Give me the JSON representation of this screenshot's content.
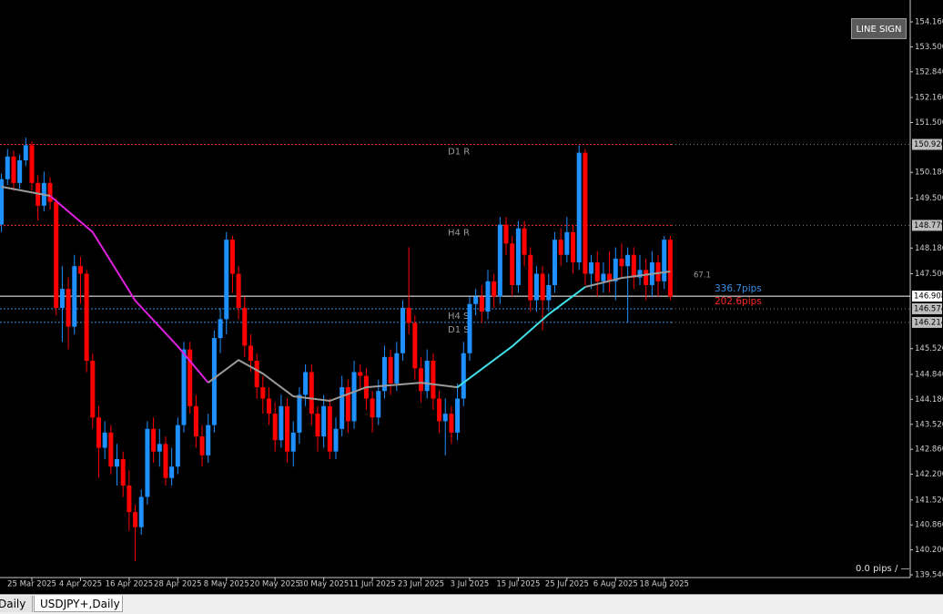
{
  "chart_data": {
    "type": "candlestick",
    "up_color": "#1e90ff",
    "down_color": "#ff0000",
    "open": [
      148.8,
      150.0,
      150.6,
      149.9,
      150.5,
      150.9,
      149.9,
      149.3,
      149.9,
      149.4,
      146.6,
      147.1,
      146.1,
      147.7,
      147.5,
      145.2,
      143.7,
      142.9,
      143.3,
      142.4,
      142.6,
      141.9,
      141.2,
      140.8,
      141.6,
      143.4,
      142.8,
      143.0,
      142.1,
      142.4,
      143.5,
      145.5,
      144.0,
      143.2,
      142.7,
      143.5,
      145.8,
      146.3,
      148.4,
      147.5,
      146.6,
      145.6,
      145.2,
      144.5,
      144.2,
      143.8,
      143.1,
      144.0,
      142.8,
      143.3,
      144.3,
      144.9,
      143.8,
      143.2,
      144.0,
      142.8,
      143.4,
      144.5,
      143.6,
      144.9,
      144.8,
      144.2,
      143.7,
      144.4,
      145.3,
      144.6,
      145.4,
      146.6,
      146.2,
      145.0,
      144.4,
      145.2,
      144.2,
      143.6,
      143.8,
      143.3,
      144.2,
      145.4,
      146.7,
      146.9,
      146.5,
      147.3,
      146.9,
      148.8,
      148.3,
      147.2,
      148.7,
      148.0,
      146.8,
      147.5,
      146.8,
      147.2,
      148.4,
      148.0,
      148.6,
      147.8,
      150.7,
      147.5,
      147.8,
      147.3,
      147.5,
      147.3,
      147.9,
      147.7,
      148.0,
      147.4,
      147.6,
      147.2,
      147.8,
      147.3,
      148.4
    ],
    "high": [
      150.15,
      150.8,
      150.75,
      150.65,
      151.1,
      151.0,
      150.1,
      150.2,
      150.05,
      149.5,
      147.7,
      147.4,
      148.0,
      147.95,
      147.6,
      145.4,
      144.0,
      143.6,
      143.5,
      143.0,
      142.8,
      142.3,
      141.4,
      141.8,
      143.6,
      143.7,
      143.4,
      143.2,
      142.9,
      143.7,
      145.7,
      145.7,
      144.3,
      143.5,
      143.8,
      146.0,
      146.6,
      148.6,
      148.5,
      147.7,
      146.9,
      145.9,
      145.4,
      144.8,
      144.5,
      144.1,
      144.3,
      144.2,
      143.6,
      144.5,
      145.1,
      145.1,
      144.0,
      144.3,
      144.2,
      143.7,
      144.8,
      144.7,
      145.2,
      145.1,
      145.0,
      144.4,
      144.7,
      145.6,
      145.5,
      145.7,
      146.8,
      148.2,
      146.4,
      145.3,
      145.5,
      145.4,
      144.4,
      144.2,
      144.0,
      144.6,
      145.7,
      146.9,
      147.1,
      147.2,
      147.6,
      147.5,
      149.0,
      149.0,
      148.5,
      148.9,
      148.9,
      148.2,
      147.7,
      147.7,
      147.5,
      148.6,
      148.7,
      149.0,
      148.8,
      150.9,
      150.8,
      148.0,
      148.1,
      147.8,
      148.1,
      148.2,
      148.3,
      148.2,
      148.2,
      148.0,
      147.9,
      148.1,
      148.0,
      148.5,
      148.5
    ],
    "low": [
      148.6,
      149.85,
      149.7,
      149.75,
      150.35,
      149.7,
      148.9,
      149.15,
      149.2,
      146.4,
      145.7,
      145.5,
      145.9,
      146.7,
      144.9,
      143.4,
      142.1,
      142.6,
      142.2,
      141.9,
      141.6,
      140.7,
      139.9,
      140.6,
      141.4,
      142.5,
      142.4,
      141.9,
      141.9,
      142.2,
      143.3,
      143.8,
      142.9,
      142.4,
      142.5,
      143.3,
      145.4,
      145.9,
      147.0,
      146.3,
      145.3,
      144.9,
      144.2,
      143.8,
      143.5,
      142.8,
      142.9,
      142.5,
      142.4,
      143.0,
      144.0,
      143.5,
      142.8,
      142.9,
      142.6,
      142.6,
      143.2,
      143.3,
      143.4,
      144.4,
      143.9,
      143.3,
      143.5,
      144.2,
      144.3,
      144.4,
      145.2,
      145.9,
      144.7,
      144.1,
      144.2,
      143.9,
      143.3,
      142.7,
      143.0,
      143.1,
      144.0,
      145.2,
      146.4,
      146.2,
      146.3,
      146.6,
      146.7,
      148.0,
      146.9,
      147.0,
      147.7,
      146.5,
      146.5,
      146.0,
      146.5,
      147.0,
      147.7,
      147.8,
      147.5,
      147.6,
      147.2,
      147.1,
      146.9,
      147.0,
      147.0,
      146.8,
      147.4,
      146.2,
      147.1,
      147.2,
      146.8,
      146.9,
      146.9,
      147.1,
      146.8
    ],
    "close": [
      150.0,
      150.6,
      149.9,
      150.5,
      150.9,
      149.9,
      149.3,
      149.9,
      149.4,
      146.6,
      147.1,
      146.1,
      147.7,
      147.5,
      145.2,
      143.7,
      142.9,
      143.3,
      142.4,
      142.6,
      141.9,
      141.2,
      140.8,
      141.6,
      143.4,
      142.8,
      143.0,
      142.1,
      142.4,
      143.5,
      145.5,
      144.0,
      143.2,
      142.7,
      143.5,
      145.8,
      146.3,
      148.4,
      147.5,
      146.6,
      145.6,
      145.2,
      144.5,
      144.2,
      143.8,
      143.1,
      144.0,
      142.8,
      143.3,
      144.3,
      144.9,
      143.8,
      143.2,
      144.0,
      142.8,
      143.4,
      144.5,
      143.6,
      144.9,
      144.8,
      144.2,
      143.7,
      144.4,
      145.3,
      144.6,
      145.4,
      146.6,
      146.2,
      145.0,
      144.4,
      145.2,
      144.2,
      143.6,
      143.8,
      143.3,
      144.2,
      145.4,
      146.7,
      146.9,
      146.5,
      147.3,
      146.9,
      148.8,
      148.3,
      147.2,
      148.7,
      148.0,
      146.8,
      147.5,
      146.8,
      147.2,
      148.4,
      148.0,
      148.6,
      147.8,
      150.7,
      147.5,
      147.8,
      147.3,
      147.5,
      147.3,
      147.9,
      147.7,
      148.0,
      147.4,
      147.6,
      147.2,
      147.8,
      147.3,
      148.4,
      146.9
    ],
    "xticks": [
      {
        "value": 5,
        "label": "25 Mar 2025"
      },
      {
        "value": 13,
        "label": "4 Apr 2025"
      },
      {
        "value": 21,
        "label": "16 Apr 2025"
      },
      {
        "value": 29,
        "label": "28 Apr 2025"
      },
      {
        "value": 37,
        "label": "8 May 2025"
      },
      {
        "value": 45,
        "label": "20 May 2025"
      },
      {
        "value": 53,
        "label": "30 May 2025"
      },
      {
        "value": 61,
        "label": "11 Jun 2025"
      },
      {
        "value": 69,
        "label": "23 Jun 2025"
      },
      {
        "value": 77,
        "label": "3 Jul 2025"
      },
      {
        "value": 85,
        "label": "15 Jul 2025"
      },
      {
        "value": 93,
        "label": "25 Jul 2025"
      },
      {
        "value": 101,
        "label": "6 Aug 2025"
      },
      {
        "value": 109,
        "label": "18 Aug 2025"
      }
    ],
    "ylim": [
      139.54,
      154.16
    ],
    "yticks": [
      {
        "value": 154.16,
        "label": "154.160"
      },
      {
        "value": 153.5,
        "label": "153.500"
      },
      {
        "value": 152.84,
        "label": "152.840"
      },
      {
        "value": 152.16,
        "label": "152.160"
      },
      {
        "value": 151.5,
        "label": "151.500"
      },
      {
        "value": 150.18,
        "label": "150.180"
      },
      {
        "value": 149.5,
        "label": "149.500"
      },
      {
        "value": 148.18,
        "label": "148.180"
      },
      {
        "value": 147.5,
        "label": "147.500"
      },
      {
        "value": 145.52,
        "label": "145.520"
      },
      {
        "value": 144.84,
        "label": "144.840"
      },
      {
        "value": 144.18,
        "label": "144.180"
      },
      {
        "value": 143.52,
        "label": "143.520"
      },
      {
        "value": 142.86,
        "label": "142.860"
      },
      {
        "value": 142.2,
        "label": "142.200"
      },
      {
        "value": 141.52,
        "label": "141.520"
      },
      {
        "value": 140.86,
        "label": "140.860"
      },
      {
        "value": 140.2,
        "label": "140.200"
      },
      {
        "value": 139.54,
        "label": "139.540"
      }
    ],
    "ma": [
      {
        "color": "#9a9a9a",
        "x": [
          0,
          4,
          8
        ],
        "values": [
          149.8,
          149.68,
          149.56
        ]
      },
      {
        "color": "#e020e0",
        "x": [
          8,
          15,
          22,
          29,
          34
        ],
        "values": [
          149.56,
          148.6,
          146.79,
          145.58,
          144.62
        ]
      },
      {
        "color": "#9a9a9a",
        "x": [
          34,
          39,
          43,
          48,
          54,
          60,
          69,
          75
        ],
        "values": [
          144.62,
          145.22,
          144.86,
          144.26,
          144.14,
          144.5,
          144.62,
          144.5
        ]
      },
      {
        "color": "#40e0e8",
        "x": [
          75,
          78,
          84,
          90,
          96
        ],
        "values": [
          144.5,
          144.86,
          145.58,
          146.43,
          147.15
        ]
      },
      {
        "color": "#9a9a9a",
        "x": [
          96,
          102,
          110
        ],
        "values": [
          147.15,
          147.39,
          147.56
        ]
      }
    ],
    "levels": [
      {
        "name": "D1 R",
        "value": 150.92,
        "label": "150.920",
        "color": "#ff2a2a"
      },
      {
        "name": "H4 R",
        "value": 148.779,
        "label": "148.779",
        "color": "#ff2a2a"
      },
      {
        "value": 146.908,
        "label": "146.908",
        "color": "#ffffff"
      },
      {
        "name": "H4 S",
        "value": 146.574,
        "label": "146.574",
        "color": "#3a8ee6"
      },
      {
        "name": "D1 S",
        "value": 146.214,
        "label": "146.214",
        "color": "#3a8ee6"
      }
    ],
    "annotations": {
      "ratio": "67.1",
      "up_pips": "336.7pips",
      "down_pips": "202.6pips",
      "spread": "0.0 pips / —"
    }
  },
  "ui": {
    "button": "LINE SIGN",
    "tabs": [
      "Daily",
      "USDJPY+,Daily"
    ]
  }
}
